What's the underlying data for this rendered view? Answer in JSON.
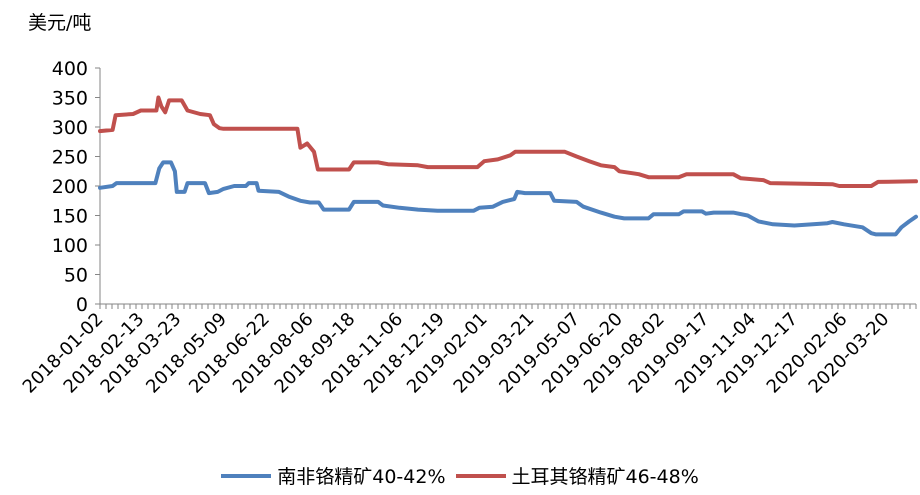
{
  "chart_data": {
    "type": "line",
    "title": "",
    "unit_label": "美元/吨",
    "xlabel": "",
    "ylabel": "",
    "ylim": [
      0,
      400
    ],
    "yticks": [
      0,
      50,
      100,
      150,
      200,
      250,
      300,
      350,
      400
    ],
    "xlim": [
      "2018-01-02",
      "2020-04-20"
    ],
    "x_tick_labels": [
      "2018-01-02",
      "2018-02-13",
      "2018-03-23",
      "2018-05-09",
      "2018-06-22",
      "2018-08-06",
      "2018-09-18",
      "2018-11-06",
      "2018-12-19",
      "2019-02-01",
      "2019-03-21",
      "2019-05-07",
      "2019-06-20",
      "2019-08-02",
      "2019-09-17",
      "2019-11-04",
      "2019-12-17",
      "2020-02-06",
      "2020-03-20"
    ],
    "grid": false,
    "legend_position": "bottom",
    "series": [
      {
        "name": "南非铬精矿40-42%",
        "color": "#4f81bd",
        "points": [
          [
            "2018-01-02",
            197
          ],
          [
            "2018-01-15",
            200
          ],
          [
            "2018-01-19",
            205
          ],
          [
            "2018-02-10",
            205
          ],
          [
            "2018-02-28",
            205
          ],
          [
            "2018-03-04",
            230
          ],
          [
            "2018-03-08",
            240
          ],
          [
            "2018-03-16",
            240
          ],
          [
            "2018-03-20",
            225
          ],
          [
            "2018-03-22",
            190
          ],
          [
            "2018-03-30",
            190
          ],
          [
            "2018-04-02",
            205
          ],
          [
            "2018-04-20",
            205
          ],
          [
            "2018-04-24",
            188
          ],
          [
            "2018-05-03",
            190
          ],
          [
            "2018-05-09",
            195
          ],
          [
            "2018-05-20",
            200
          ],
          [
            "2018-06-01",
            200
          ],
          [
            "2018-06-04",
            205
          ],
          [
            "2018-06-12",
            205
          ],
          [
            "2018-06-14",
            192
          ],
          [
            "2018-07-05",
            190
          ],
          [
            "2018-07-15",
            182
          ],
          [
            "2018-07-27",
            175
          ],
          [
            "2018-08-06",
            172
          ],
          [
            "2018-08-15",
            172
          ],
          [
            "2018-08-20",
            160
          ],
          [
            "2018-09-15",
            160
          ],
          [
            "2018-09-20",
            173
          ],
          [
            "2018-10-15",
            173
          ],
          [
            "2018-10-20",
            167
          ],
          [
            "2018-11-06",
            163
          ],
          [
            "2018-11-25",
            160
          ],
          [
            "2018-12-15",
            158
          ],
          [
            "2019-01-21",
            158
          ],
          [
            "2019-01-27",
            163
          ],
          [
            "2019-02-10",
            165
          ],
          [
            "2019-02-20",
            173
          ],
          [
            "2019-03-04",
            178
          ],
          [
            "2019-03-07",
            190
          ],
          [
            "2019-03-15",
            188
          ],
          [
            "2019-04-10",
            188
          ],
          [
            "2019-04-14",
            175
          ],
          [
            "2019-05-07",
            173
          ],
          [
            "2019-05-14",
            165
          ],
          [
            "2019-06-01",
            155
          ],
          [
            "2019-06-15",
            148
          ],
          [
            "2019-06-25",
            145
          ],
          [
            "2019-07-20",
            145
          ],
          [
            "2019-07-25",
            152
          ],
          [
            "2019-08-20",
            152
          ],
          [
            "2019-08-25",
            157
          ],
          [
            "2019-09-13",
            157
          ],
          [
            "2019-09-17",
            153
          ],
          [
            "2019-09-25",
            155
          ],
          [
            "2019-10-15",
            155
          ],
          [
            "2019-10-30",
            150
          ],
          [
            "2019-11-10",
            140
          ],
          [
            "2019-11-25",
            135
          ],
          [
            "2019-12-17",
            133
          ],
          [
            "2020-01-05",
            135
          ],
          [
            "2020-01-20",
            137
          ],
          [
            "2020-01-25",
            139
          ],
          [
            "2020-02-06",
            135
          ],
          [
            "2020-02-25",
            130
          ],
          [
            "2020-03-05",
            120
          ],
          [
            "2020-03-10",
            118
          ],
          [
            "2020-03-30",
            118
          ],
          [
            "2020-04-05",
            130
          ],
          [
            "2020-04-13",
            140
          ],
          [
            "2020-04-20",
            148
          ]
        ]
      },
      {
        "name": "土耳其铬精矿46-48%",
        "color": "#c0504d",
        "points": [
          [
            "2018-01-02",
            293
          ],
          [
            "2018-01-15",
            295
          ],
          [
            "2018-01-18",
            320
          ],
          [
            "2018-02-05",
            322
          ],
          [
            "2018-02-13",
            328
          ],
          [
            "2018-03-01",
            328
          ],
          [
            "2018-03-03",
            350
          ],
          [
            "2018-03-06",
            335
          ],
          [
            "2018-03-10",
            325
          ],
          [
            "2018-03-14",
            345
          ],
          [
            "2018-03-27",
            345
          ],
          [
            "2018-04-02",
            328
          ],
          [
            "2018-04-15",
            322
          ],
          [
            "2018-04-25",
            320
          ],
          [
            "2018-04-29",
            305
          ],
          [
            "2018-05-05",
            298
          ],
          [
            "2018-05-09",
            297
          ],
          [
            "2018-07-24",
            297
          ],
          [
            "2018-07-27",
            265
          ],
          [
            "2018-08-03",
            272
          ],
          [
            "2018-08-10",
            258
          ],
          [
            "2018-08-14",
            228
          ],
          [
            "2018-09-15",
            228
          ],
          [
            "2018-09-20",
            240
          ],
          [
            "2018-10-15",
            240
          ],
          [
            "2018-10-25",
            237
          ],
          [
            "2018-11-25",
            235
          ],
          [
            "2018-12-05",
            232
          ],
          [
            "2019-01-25",
            232
          ],
          [
            "2019-02-01",
            242
          ],
          [
            "2019-02-15",
            245
          ],
          [
            "2019-02-28",
            252
          ],
          [
            "2019-03-05",
            258
          ],
          [
            "2019-04-25",
            258
          ],
          [
            "2019-05-07",
            250
          ],
          [
            "2019-05-20",
            242
          ],
          [
            "2019-06-01",
            235
          ],
          [
            "2019-06-15",
            232
          ],
          [
            "2019-06-20",
            225
          ],
          [
            "2019-07-10",
            220
          ],
          [
            "2019-07-20",
            215
          ],
          [
            "2019-08-20",
            215
          ],
          [
            "2019-08-28",
            220
          ],
          [
            "2019-10-15",
            220
          ],
          [
            "2019-10-23",
            213
          ],
          [
            "2019-11-15",
            210
          ],
          [
            "2019-11-22",
            205
          ],
          [
            "2020-01-25",
            203
          ],
          [
            "2020-02-01",
            200
          ],
          [
            "2020-03-05",
            200
          ],
          [
            "2020-03-12",
            207
          ],
          [
            "2020-04-20",
            208
          ]
        ]
      }
    ]
  }
}
